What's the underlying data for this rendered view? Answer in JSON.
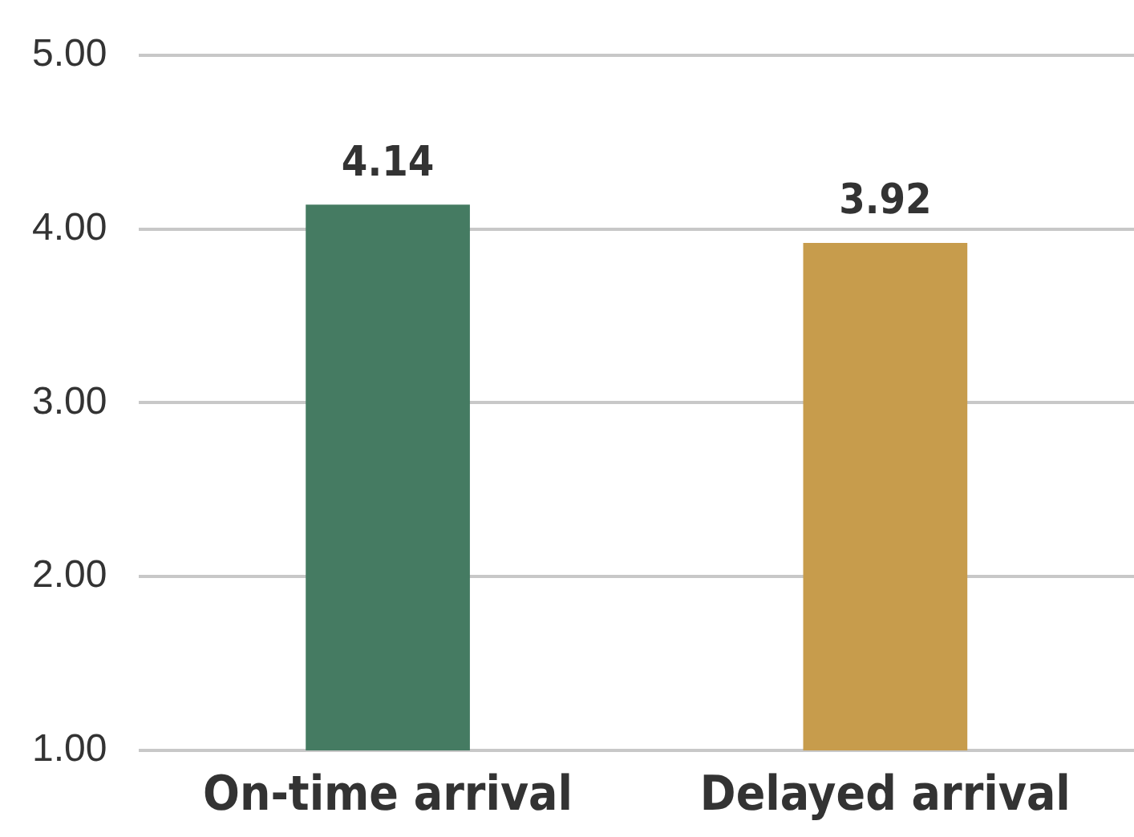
{
  "chart_data": {
    "type": "bar",
    "categories": [
      "On-time arrival",
      "Delayed arrival"
    ],
    "values": [
      4.14,
      3.92
    ],
    "colors": [
      "#457b62",
      "#c79c4c"
    ],
    "ylim": [
      1,
      5
    ],
    "yticks": [
      {
        "value": 1,
        "label": "1.00"
      },
      {
        "value": 2,
        "label": "2.00"
      },
      {
        "value": 3,
        "label": "3.00"
      },
      {
        "value": 4,
        "label": "4.00"
      },
      {
        "value": 5,
        "label": "5.00"
      }
    ],
    "grid": "y",
    "data_labels": true
  }
}
